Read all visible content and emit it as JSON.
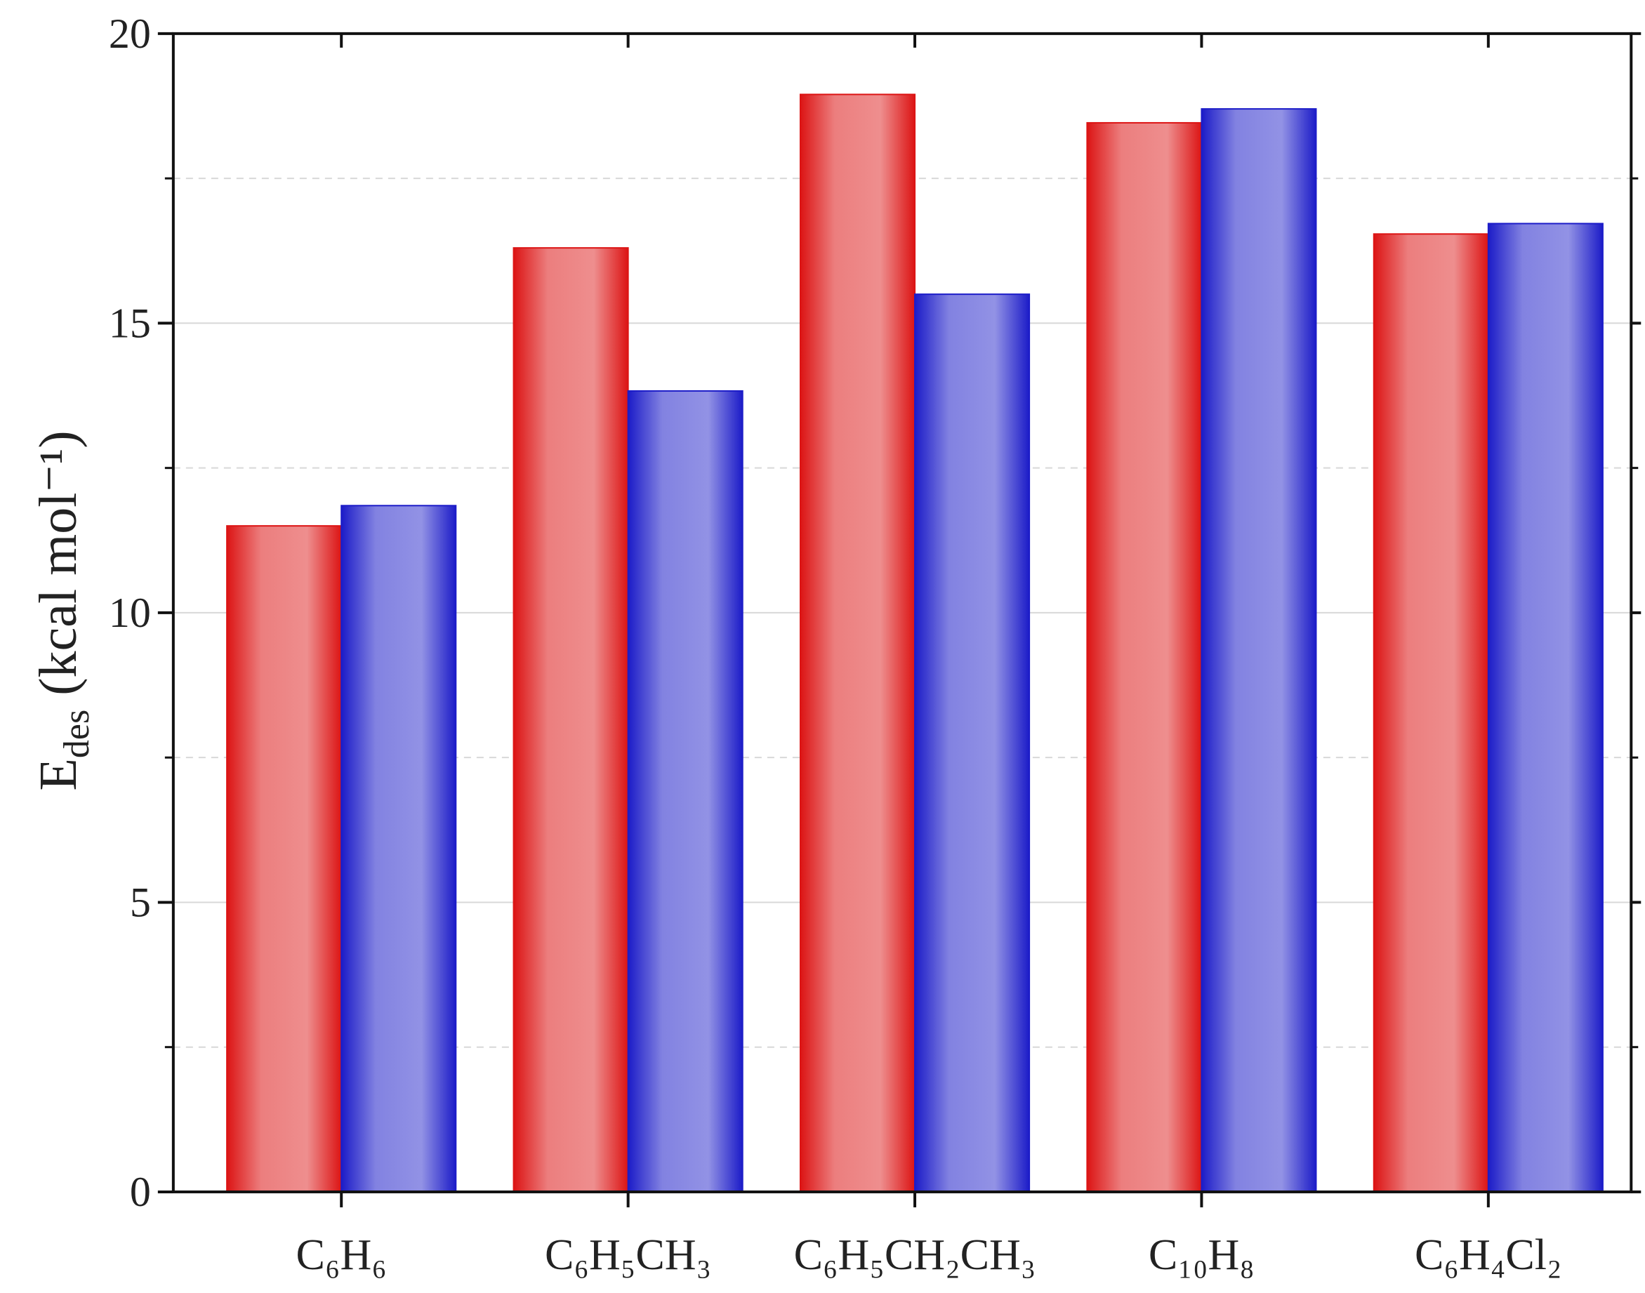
{
  "chart_data": {
    "type": "bar",
    "y_label": {
      "symbol": "E",
      "subscript": "des",
      "unit": "(kcal mol⁻¹)"
    },
    "categories": [
      "C₆H₆",
      "C₆H₅CH₃",
      "C₆H₅CH₂CH₃",
      "C₁₀H₈",
      "C₆H₄Cl₂"
    ],
    "series": [
      {
        "color": "#dc1414",
        "values": [
          11.5,
          16.3,
          18.95,
          18.46,
          16.54
        ]
      },
      {
        "color": "#1c1cc8",
        "values": [
          11.85,
          13.83,
          15.5,
          18.7,
          16.72
        ]
      }
    ],
    "ylim": [
      0,
      20
    ],
    "yticks": [
      0,
      5,
      10,
      15,
      20
    ],
    "minor_yticks": [
      2.5,
      7.5,
      12.5,
      17.5
    ],
    "grid": true
  }
}
